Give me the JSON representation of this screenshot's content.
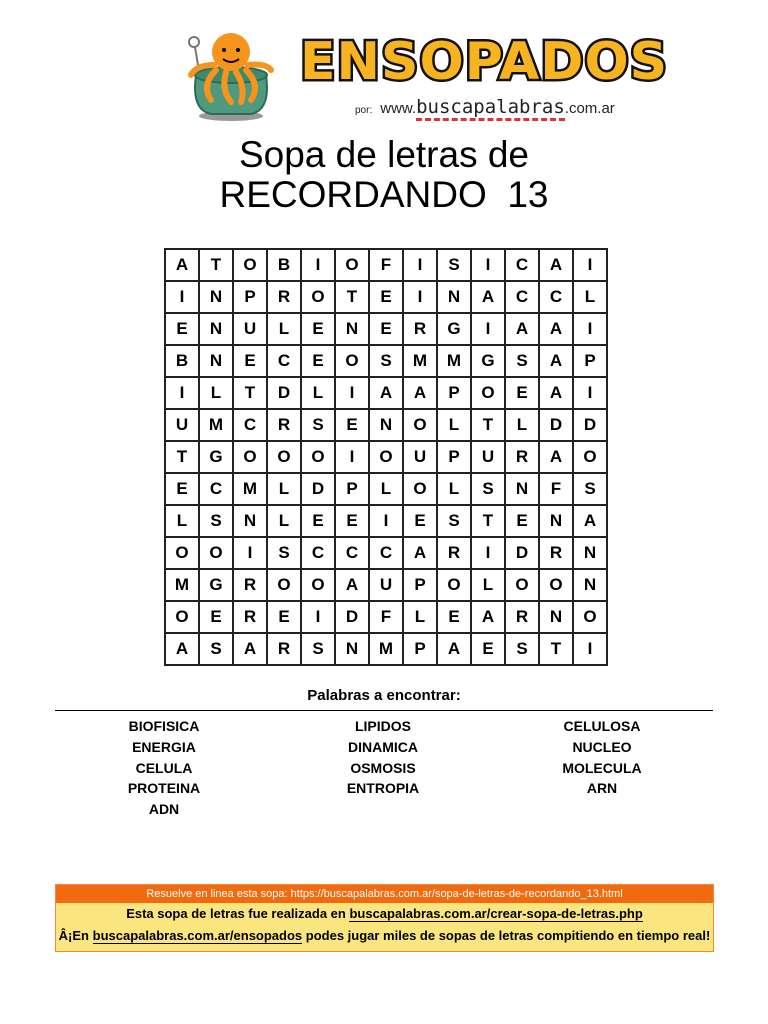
{
  "logo": {
    "text": "ENSOPADOS",
    "by": "por:",
    "site_prefix": "www.",
    "site_name": "buscapalabras",
    "site_suffix": ".com.ar"
  },
  "title": {
    "line1": "Sopa de letras de",
    "line2": "RECORDANDO  13"
  },
  "grid": [
    [
      "A",
      "T",
      "O",
      "B",
      "I",
      "O",
      "F",
      "I",
      "S",
      "I",
      "C",
      "A",
      "I"
    ],
    [
      "I",
      "N",
      "P",
      "R",
      "O",
      "T",
      "E",
      "I",
      "N",
      "A",
      "C",
      "C",
      "L"
    ],
    [
      "E",
      "N",
      "U",
      "L",
      "E",
      "N",
      "E",
      "R",
      "G",
      "I",
      "A",
      "A",
      "I"
    ],
    [
      "B",
      "N",
      "E",
      "C",
      "E",
      "O",
      "S",
      "M",
      "M",
      "G",
      "S",
      "A",
      "P"
    ],
    [
      "I",
      "L",
      "T",
      "D",
      "L",
      "I",
      "A",
      "A",
      "P",
      "O",
      "E",
      "A",
      "I"
    ],
    [
      "U",
      "M",
      "C",
      "R",
      "S",
      "E",
      "N",
      "O",
      "L",
      "T",
      "L",
      "D",
      "D"
    ],
    [
      "T",
      "G",
      "O",
      "O",
      "O",
      "I",
      "O",
      "U",
      "P",
      "U",
      "R",
      "A",
      "O"
    ],
    [
      "E",
      "C",
      "M",
      "L",
      "D",
      "P",
      "L",
      "O",
      "L",
      "S",
      "N",
      "F",
      "S"
    ],
    [
      "L",
      "S",
      "N",
      "L",
      "E",
      "E",
      "I",
      "E",
      "S",
      "T",
      "E",
      "N",
      "A"
    ],
    [
      "O",
      "O",
      "I",
      "S",
      "C",
      "C",
      "C",
      "A",
      "R",
      "I",
      "D",
      "R",
      "N"
    ],
    [
      "M",
      "G",
      "R",
      "O",
      "O",
      "A",
      "U",
      "P",
      "O",
      "L",
      "O",
      "O",
      "N"
    ],
    [
      "O",
      "E",
      "R",
      "E",
      "I",
      "D",
      "F",
      "L",
      "E",
      "A",
      "R",
      "N",
      "O"
    ],
    [
      "A",
      "S",
      "A",
      "R",
      "S",
      "N",
      "M",
      "P",
      "A",
      "E",
      "S",
      "T",
      "I"
    ]
  ],
  "words_heading": "Palabras a encontrar:",
  "words": [
    [
      "BIOFISICA",
      "ENERGIA",
      "CELULA",
      "PROTEINA",
      "ADN"
    ],
    [
      "LIPIDOS",
      "DINAMICA",
      "OSMOSIS",
      "ENTROPIA"
    ],
    [
      "CELULOSA",
      "NUCLEO",
      "MOLECULA",
      "ARN"
    ]
  ],
  "footer": {
    "online": "Resuelve en linea esta sopa: https://buscapalabras.com.ar/sopa-de-letras-de-recordando_13.html",
    "made_prefix": "Esta sopa de letras fue realizada en ",
    "made_link": "buscapalabras.com.ar/crear-sopa-de-letras.php",
    "play_prefix": "Â¡En ",
    "play_link": "buscapalabras.com.ar/ensopados",
    "play_suffix": " podes jugar miles de sopas de letras compitiendo en tiempo real!"
  },
  "colors": {
    "orange_bar": "#f26a10",
    "footer_bg": "#fbe57f",
    "logo_fill": "#f8b320"
  }
}
